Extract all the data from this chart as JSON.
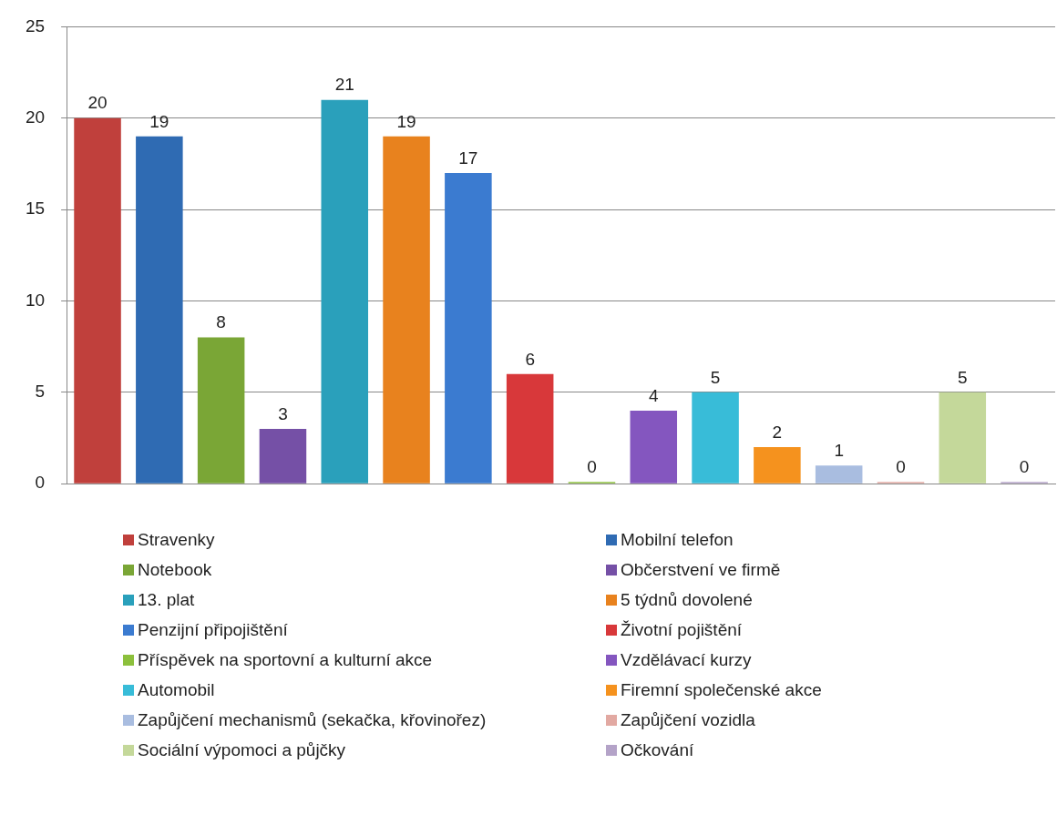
{
  "chart_data": {
    "type": "bar",
    "categories": [
      null
    ],
    "series": [
      {
        "name": "Stravenky",
        "color": "#c0403c",
        "values": [
          20
        ]
      },
      {
        "name": "Mobilní telefon",
        "color": "#2f6bb3",
        "values": [
          19
        ]
      },
      {
        "name": "Notebook",
        "color": "#7aa636",
        "values": [
          8
        ]
      },
      {
        "name": "Občerstvení ve firmě",
        "color": "#7550a6",
        "values": [
          3
        ]
      },
      {
        "name": "13. plat",
        "color": "#2aa0bb",
        "values": [
          21
        ]
      },
      {
        "name": "5 týdnů dovolené",
        "color": "#e8821e",
        "values": [
          19
        ]
      },
      {
        "name": "Penzijní připojištění",
        "color": "#3b7bd0",
        "values": [
          17
        ]
      },
      {
        "name": "Životní pojištění",
        "color": "#d8383a",
        "values": [
          6
        ]
      },
      {
        "name": "Příspěvek na sportovní a kulturní akce",
        "color": "#8cc03c",
        "values": [
          0
        ]
      },
      {
        "name": "Vzdělávací kurzy",
        "color": "#8456bf",
        "values": [
          4
        ]
      },
      {
        "name": "Automobil",
        "color": "#38bcd8",
        "values": [
          5
        ]
      },
      {
        "name": "Firemní společenské akce",
        "color": "#f5921e",
        "values": [
          2
        ]
      },
      {
        "name": "Zapůjčení mechanismů (sekačka, křovinořez)",
        "color": "#a9bde0",
        "values": [
          1
        ]
      },
      {
        "name": "Zapůjčení vozidla",
        "color": "#e2a9a2",
        "values": [
          0
        ]
      },
      {
        "name": "Sociální výpomoci a půjčky",
        "color": "#c4d89a",
        "values": [
          5
        ]
      },
      {
        "name": "Očkování",
        "color": "#b4a3c8",
        "values": [
          0
        ]
      }
    ],
    "ylim": [
      0,
      25
    ],
    "yticks": [
      0,
      5,
      10,
      15,
      20,
      25
    ],
    "grid": "y",
    "data_labels": true,
    "legend": "bottom"
  }
}
